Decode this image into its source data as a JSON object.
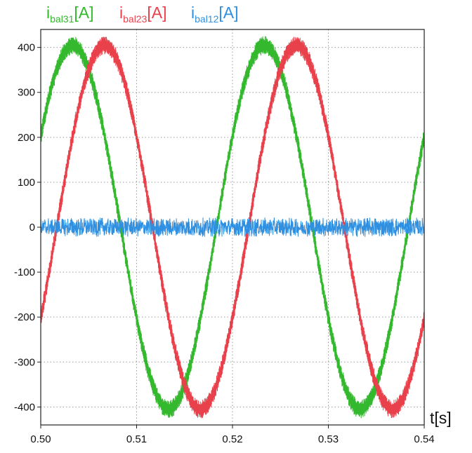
{
  "chart_data": {
    "type": "line",
    "xlabel": "t[s]",
    "ylabel": "",
    "xlim": [
      0.5,
      0.54
    ],
    "ylim": [
      -440,
      440
    ],
    "x_ticks": [
      0.5,
      0.51,
      0.52,
      0.53,
      0.54
    ],
    "x_tick_labels": [
      "0.50",
      "0.51",
      "0.52",
      "0.53",
      "0.54"
    ],
    "y_ticks": [
      400,
      300,
      200,
      100,
      0,
      -100,
      -200,
      -300,
      -400
    ],
    "y_tick_labels": [
      "400",
      "300",
      "200",
      "100",
      "0",
      "-100",
      "-200",
      "-300",
      "-400"
    ],
    "grid": true,
    "legend_position": "top",
    "series": [
      {
        "name": "i_bal31[A]",
        "legend_main": "i",
        "legend_sub": "bal31",
        "legend_unit": "[A]",
        "color": "#33b82e",
        "waveform": "sine",
        "frequency_hz": 50,
        "amplitude": 405,
        "phase_deg": 30,
        "ripple": 20,
        "x": [
          0.5,
          0.5033,
          0.5083,
          0.5133,
          0.5183,
          0.5233,
          0.5283,
          0.5333,
          0.5383,
          0.54
        ],
        "values": [
          203,
          405,
          0,
          -405,
          0,
          405,
          0,
          -405,
          0,
          203
        ]
      },
      {
        "name": "i_bal23[A]",
        "legend_main": "i",
        "legend_sub": "bal23",
        "legend_unit": "[A]",
        "color": "#e8414b",
        "waveform": "sine",
        "frequency_hz": 50,
        "amplitude": 405,
        "phase_deg": -30,
        "ripple": 20,
        "x": [
          0.5,
          0.5017,
          0.5067,
          0.5117,
          0.5167,
          0.5217,
          0.5267,
          0.5317,
          0.5367,
          0.54
        ],
        "values": [
          -203,
          0,
          405,
          0,
          -405,
          0,
          405,
          0,
          -405,
          -203
        ]
      },
      {
        "name": "i_bal12[A]",
        "legend_main": "i",
        "legend_sub": "bal12",
        "legend_unit": "[A]",
        "color": "#2f8fe0",
        "waveform": "noise",
        "amplitude": 0,
        "ripple": 18,
        "x": [
          0.5,
          0.51,
          0.52,
          0.53,
          0.54
        ],
        "values": [
          0,
          0,
          0,
          0,
          0
        ]
      }
    ]
  }
}
